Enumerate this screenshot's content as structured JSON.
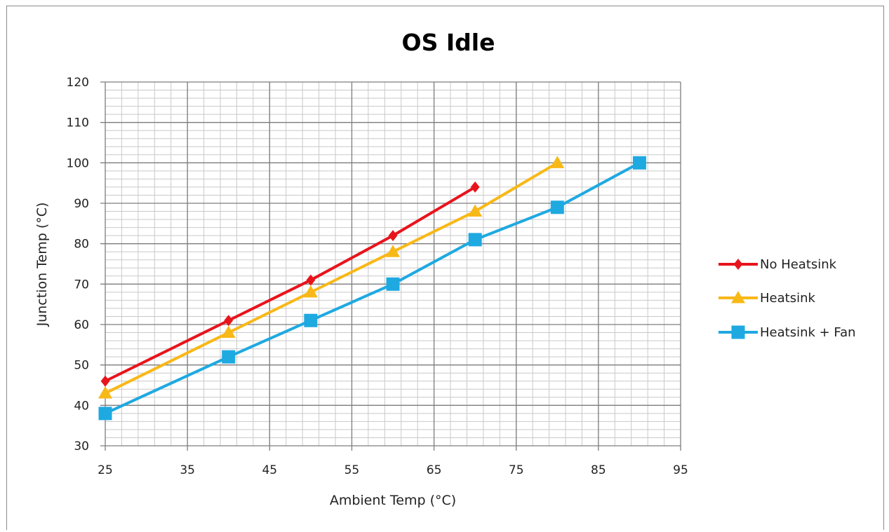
{
  "chart_data": {
    "type": "line",
    "title": "OS Idle",
    "xlabel": "Ambient Temp (°C)",
    "ylabel": "Junction Temp (°C)",
    "xlim": [
      25,
      95
    ],
    "ylim": [
      30,
      120
    ],
    "x_ticks": [
      25,
      35,
      45,
      55,
      65,
      75,
      85,
      95
    ],
    "y_ticks": [
      30,
      40,
      50,
      60,
      70,
      80,
      90,
      100,
      110,
      120
    ],
    "grid": true,
    "legend_position": "right",
    "series": [
      {
        "name": "No Heatsink",
        "color": "#e8141c",
        "marker": "diamond",
        "x": [
          25,
          40,
          50,
          60,
          70
        ],
        "y": [
          46,
          61,
          71,
          82,
          94
        ]
      },
      {
        "name": "Heatsink",
        "color": "#f8b817",
        "marker": "triangle",
        "x": [
          25,
          40,
          50,
          60,
          70,
          80
        ],
        "y": [
          43,
          58,
          68,
          78,
          88,
          100
        ]
      },
      {
        "name": "Heatsink + Fan",
        "color": "#1ea9e1",
        "marker": "square",
        "x": [
          25,
          40,
          50,
          60,
          70,
          80,
          90
        ],
        "y": [
          38,
          52,
          61,
          70,
          81,
          89,
          100
        ]
      }
    ]
  }
}
